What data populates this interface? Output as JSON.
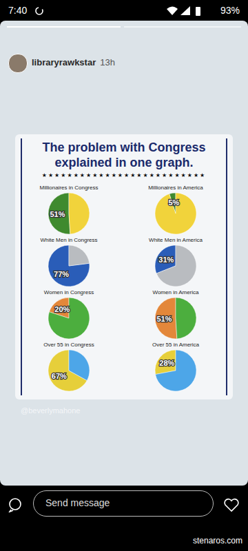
{
  "status_bar": {
    "time": "7:40",
    "battery": "93%"
  },
  "story": {
    "user": "libraryrawkstar",
    "age": "13h"
  },
  "infographic": {
    "title": "The problem with Congress explained in one graph.",
    "stars": "★★★★★★★★★★★★★★★★★★★★★★★★★★",
    "credit": "@beverlymahone"
  },
  "chart_data": [
    {
      "type": "pie",
      "title": "Millionaires in Congress",
      "values": [
        51,
        49
      ],
      "value_labels": [
        "51%",
        null
      ],
      "colors": [
        "#3f8a2e",
        "#f1d33b"
      ],
      "data_labels": true
    },
    {
      "type": "pie",
      "title": "Millionaires in America",
      "values": [
        5,
        95
      ],
      "value_labels": [
        "5%",
        null
      ],
      "colors": [
        "#3f8a2e",
        "#f1d33b"
      ],
      "data_labels": true
    },
    {
      "type": "pie",
      "title": "White Men in Congress",
      "values": [
        77,
        23
      ],
      "value_labels": [
        "77%",
        null
      ],
      "colors": [
        "#2a5db8",
        "#b9bcc0"
      ],
      "data_labels": true
    },
    {
      "type": "pie",
      "title": "White Men in America",
      "values": [
        31,
        69
      ],
      "value_labels": [
        "31%",
        null
      ],
      "colors": [
        "#2a5db8",
        "#b9bcc0"
      ],
      "data_labels": true
    },
    {
      "type": "pie",
      "title": "Women in Congress",
      "values": [
        20,
        80
      ],
      "value_labels": [
        "20%",
        null
      ],
      "colors": [
        "#e3873a",
        "#4cae3e"
      ],
      "data_labels": true
    },
    {
      "type": "pie",
      "title": "Women in America",
      "values": [
        51,
        49
      ],
      "value_labels": [
        "51%",
        null
      ],
      "colors": [
        "#e3873a",
        "#4cae3e"
      ],
      "data_labels": true
    },
    {
      "type": "pie",
      "title": "Over 55 in Congress",
      "values": [
        67,
        33
      ],
      "value_labels": [
        "67%",
        null
      ],
      "colors": [
        "#e6cf3a",
        "#4da6e8"
      ],
      "data_labels": true
    },
    {
      "type": "pie",
      "title": "Over 55 in America",
      "values": [
        28,
        72
      ],
      "value_labels": [
        "28%",
        null
      ],
      "colors": [
        "#e6cf3a",
        "#4da6e8"
      ],
      "data_labels": true
    }
  ],
  "footer": {
    "input_placeholder": "Send message",
    "watermark": "stenaros.com"
  }
}
